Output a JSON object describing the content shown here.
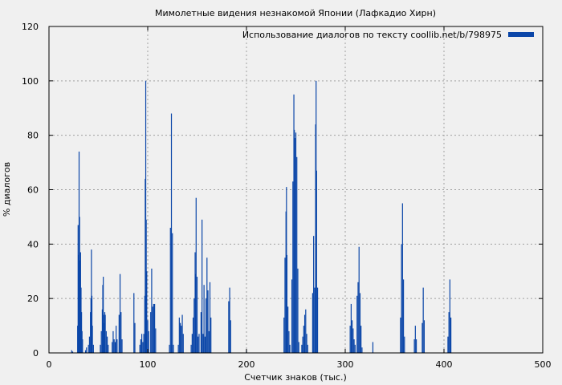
{
  "chart_data": {
    "type": "bar",
    "title": "Мимолетные видения незнакомой Японии (Лафкадио Хирн)",
    "xlabel": "Счетчик знаков (тыс.)",
    "ylabel": "% диалогов",
    "xlim": [
      0,
      500
    ],
    "ylim": [
      0,
      120
    ],
    "xticks": [
      0,
      100,
      200,
      300,
      400,
      500
    ],
    "yticks": [
      0,
      20,
      40,
      60,
      80,
      100,
      120
    ],
    "xtick_labels": [
      "0",
      "100",
      "200",
      "300",
      "400",
      "500"
    ],
    "ytick_labels": [
      "0",
      "20",
      "40",
      "60",
      "80",
      "100",
      "120"
    ],
    "grid": true,
    "legend_position": "top-right",
    "color": "#0b46a8",
    "series": [
      {
        "name": "Использование диалогов по тексту coollib.net/b/798975",
        "points": [
          [
            23,
            1
          ],
          [
            24,
            0.5
          ],
          [
            29,
            10
          ],
          [
            29.5,
            47
          ],
          [
            30,
            36
          ],
          [
            30.5,
            74
          ],
          [
            31,
            50
          ],
          [
            31.5,
            34
          ],
          [
            32,
            37
          ],
          [
            32.5,
            24
          ],
          [
            33,
            15
          ],
          [
            33.5,
            8
          ],
          [
            34,
            5
          ],
          [
            37,
            1
          ],
          [
            38,
            2
          ],
          [
            40,
            3
          ],
          [
            41,
            6
          ],
          [
            42,
            15
          ],
          [
            42.5,
            20
          ],
          [
            43,
            38
          ],
          [
            43.5,
            21
          ],
          [
            44,
            10
          ],
          [
            45,
            3
          ],
          [
            52,
            3
          ],
          [
            53,
            8
          ],
          [
            54,
            16
          ],
          [
            54.5,
            25
          ],
          [
            55,
            28
          ],
          [
            55.5,
            14
          ],
          [
            56,
            11
          ],
          [
            56.5,
            15
          ],
          [
            57,
            14
          ],
          [
            58,
            8
          ],
          [
            59,
            6
          ],
          [
            60,
            3
          ],
          [
            64,
            4
          ],
          [
            65,
            8
          ],
          [
            66,
            5
          ],
          [
            67,
            4
          ],
          [
            68,
            10
          ],
          [
            69,
            5
          ],
          [
            71,
            14
          ],
          [
            72,
            29
          ],
          [
            73,
            15
          ],
          [
            74,
            5
          ],
          [
            86,
            22
          ],
          [
            87,
            11
          ],
          [
            92,
            3
          ],
          [
            93,
            5
          ],
          [
            94,
            7
          ],
          [
            95,
            4
          ],
          [
            96,
            7
          ],
          [
            97,
            21
          ],
          [
            97.5,
            64
          ],
          [
            98,
            100
          ],
          [
            98.5,
            49
          ],
          [
            99,
            30
          ],
          [
            100,
            12
          ],
          [
            101,
            8
          ],
          [
            103,
            15
          ],
          [
            104,
            31
          ],
          [
            105,
            17
          ],
          [
            106,
            18
          ],
          [
            107,
            18
          ],
          [
            108,
            9
          ],
          [
            122,
            3
          ],
          [
            123,
            46
          ],
          [
            124,
            88
          ],
          [
            125,
            44
          ],
          [
            126,
            3
          ],
          [
            131,
            3
          ],
          [
            132,
            13
          ],
          [
            133,
            11
          ],
          [
            134,
            10
          ],
          [
            135,
            14
          ],
          [
            136,
            7
          ],
          [
            144,
            3
          ],
          [
            145,
            7
          ],
          [
            146,
            13
          ],
          [
            147,
            20
          ],
          [
            148,
            37
          ],
          [
            148.5,
            29
          ],
          [
            149,
            57
          ],
          [
            150,
            28
          ],
          [
            151,
            6
          ],
          [
            152,
            7
          ],
          [
            154,
            15
          ],
          [
            155,
            49
          ],
          [
            156,
            7
          ],
          [
            157,
            25
          ],
          [
            158,
            6
          ],
          [
            159,
            20
          ],
          [
            160,
            35
          ],
          [
            161,
            23
          ],
          [
            162,
            8
          ],
          [
            163,
            26
          ],
          [
            164,
            13
          ],
          [
            182,
            19
          ],
          [
            183,
            24
          ],
          [
            184,
            12
          ],
          [
            200,
            1
          ],
          [
            238,
            13
          ],
          [
            239,
            35
          ],
          [
            240,
            52
          ],
          [
            240.5,
            61
          ],
          [
            241,
            36
          ],
          [
            242,
            17
          ],
          [
            243,
            8
          ],
          [
            244,
            3
          ],
          [
            246,
            27
          ],
          [
            247,
            63
          ],
          [
            248,
            95
          ],
          [
            248.5,
            82
          ],
          [
            249,
            79
          ],
          [
            250,
            81
          ],
          [
            251,
            72
          ],
          [
            252,
            31
          ],
          [
            253,
            4
          ],
          [
            256,
            3
          ],
          [
            257,
            6
          ],
          [
            258,
            10
          ],
          [
            259,
            14
          ],
          [
            260,
            16
          ],
          [
            261,
            7
          ],
          [
            262,
            3
          ],
          [
            267,
            22
          ],
          [
            268,
            43
          ],
          [
            269,
            24
          ],
          [
            270,
            84
          ],
          [
            270.5,
            100
          ],
          [
            271,
            67
          ],
          [
            272,
            24
          ],
          [
            305,
            10
          ],
          [
            306,
            18
          ],
          [
            307,
            12
          ],
          [
            308,
            9
          ],
          [
            309,
            5
          ],
          [
            310,
            3
          ],
          [
            312,
            21
          ],
          [
            313,
            26
          ],
          [
            314,
            39
          ],
          [
            315,
            22
          ],
          [
            316,
            10
          ],
          [
            317,
            2
          ],
          [
            328,
            4
          ],
          [
            356,
            13
          ],
          [
            357,
            40
          ],
          [
            358,
            55
          ],
          [
            359,
            27
          ],
          [
            360,
            6
          ],
          [
            370,
            5
          ],
          [
            371,
            10
          ],
          [
            372,
            5
          ],
          [
            378,
            11
          ],
          [
            379,
            24
          ],
          [
            380,
            12
          ],
          [
            404,
            6
          ],
          [
            405,
            15
          ],
          [
            406,
            27
          ],
          [
            407,
            13
          ]
        ]
      }
    ]
  }
}
